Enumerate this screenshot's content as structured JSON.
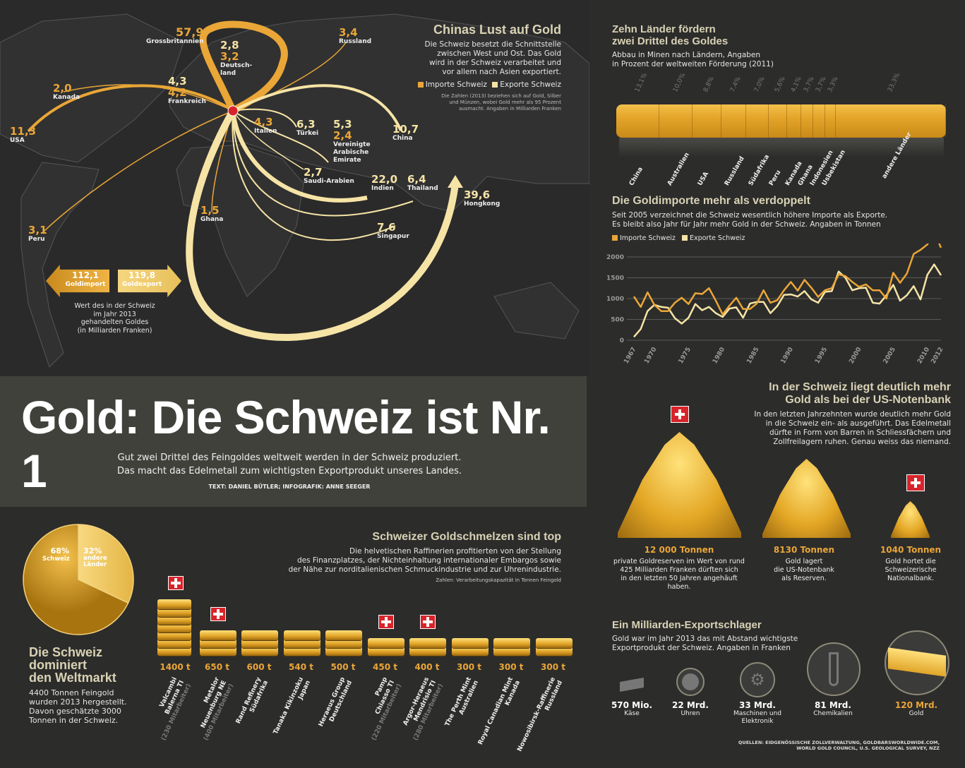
{
  "title": "Gold: Die Schweiz ist Nr. 1",
  "subtitle": [
    "Gut zwei Drittel des Feingoldes weltweit werden in der Schweiz produziert.",
    "Das macht das Edelmetall zum wichtigsten Exportprodukt unseres Landes."
  ],
  "credit": "TEXT: DANIEL BÜTLER; INFOGRAFIK: ANNE SEEGER",
  "colors": {
    "import": "#eaa637",
    "export": "#f6e4a6",
    "background": "#2c2c2b"
  },
  "map": {
    "title": "Chinas Lust auf Gold",
    "text": [
      "Die Schweiz besetzt die Schnittstelle",
      "zwischen West und Ost. Das Gold",
      "wird in der Schweiz verarbeitet und",
      "vor allem nach Asien exportiert."
    ],
    "legend_import": "Importe Schweiz",
    "legend_export": "Exporte Schweiz",
    "note": [
      "Die Zahlen (2013) beziehen sich auf Gold, Silber",
      "und Münzen, wobei Gold mehr als 95 Prozent",
      "ausmacht. Angaben in Milliarden Franken"
    ],
    "countries": {
      "gb": {
        "name": "Grossbritannien",
        "import": "57,9"
      },
      "de": {
        "name1": "Deutsch-",
        "name2": "land",
        "export": "2,8",
        "import": "3,2"
      },
      "ru": {
        "name": "Russland",
        "import": "3,4"
      },
      "ca": {
        "name": "Kanada",
        "import": "2,0"
      },
      "fr": {
        "name": "Frankreich",
        "export": "4,3",
        "import": "4,2"
      },
      "us": {
        "name": "USA",
        "import": "11,3"
      },
      "it": {
        "name": "Italien",
        "import": "4,3"
      },
      "tr": {
        "name": "Türkei",
        "export": "6,3"
      },
      "ae": {
        "name1": "Vereinigte",
        "name2": "Arabische",
        "name3": "Emirate",
        "export": "5,3",
        "import": "2,4"
      },
      "cn": {
        "name": "China",
        "export": "10,7"
      },
      "sa": {
        "name": "Saudi-Arabien",
        "export": "2,7"
      },
      "in": {
        "name": "Indien",
        "export": "22,0"
      },
      "th": {
        "name": "Thailand",
        "export": "6,4"
      },
      "hk": {
        "name": "Hongkong",
        "export": "39,6"
      },
      "gh": {
        "name": "Ghana",
        "import": "1,5"
      },
      "sg": {
        "name": "Singapur",
        "export": "7,6"
      },
      "pe": {
        "name": "Peru",
        "import": "3,1"
      }
    },
    "goldimport": {
      "value": "112,1",
      "label": "Goldimport"
    },
    "goldexport": {
      "value": "119,8",
      "label": "Goldexport"
    },
    "trade_note": [
      "Wert des in der Schweiz",
      "im Jahr 2013",
      "gehandelten Goldes",
      "(in Milliarden Franken)"
    ]
  },
  "mining": {
    "title": [
      "Zehn Länder fördern",
      "zwei Drittel des Goldes"
    ],
    "text": [
      "Abbau in Minen nach Ländern, Angaben",
      "in Prozent der weltweiten Förderung (2011)"
    ]
  },
  "nationalbank": {
    "title": [
      "In der Schweiz liegt deutlich mehr",
      "Gold als bei der US-Notenbank"
    ],
    "text": [
      "In den letzten Jahrzehnten wurde deutlich mehr Gold",
      "in die Schweiz ein- als ausgeführt. Das Edelmetall",
      "dürfte in Form von Barren in Schliessfächern und",
      "Zollfreilagern ruhen. Genau weiss das niemand."
    ],
    "piles": [
      {
        "value": "12 000 Tonnen",
        "desc": [
          "private Goldreserven im Wert von rund",
          "425 Milliarden Franken dürften sich",
          "in den letzten 50 Jahren angehäuft haben."
        ]
      },
      {
        "value": "8130 Tonnen",
        "desc": [
          "Gold lagert",
          "die US-Notenbank",
          "als Reserven."
        ]
      },
      {
        "value": "1040 Tonnen",
        "desc": [
          "Gold hortet die",
          "Schweizerische",
          "Nationalbank."
        ]
      }
    ]
  },
  "smelters": {
    "title": "Schweizer Goldschmelzen sind top",
    "text": [
      "Die helvetischen Raffinerien profitierten von der Stellung",
      "des Finanzplatzes, der Nichteinhaltung internationaler Embargos sowie",
      "der Nähe zur norditalienischen Schmuckindustrie und zur Uhrenindustrie."
    ],
    "note": "Zahlen: Verarbeitungskapazität in Tonnen Feingold"
  },
  "market": {
    "title": [
      "Die Schweiz",
      "dominiert",
      "den Weltmarkt"
    ],
    "text": [
      "4400 Tonnen Feingold",
      "wurden 2013 hergestellt.",
      "Davon geschätzte 3000",
      "Tonnen in der Schweiz."
    ]
  },
  "exports": {
    "title": "Ein Milliarden-Exportschlager",
    "text": [
      "Gold war im Jahr 2013 das mit Abstand wichtigste",
      "Exportprodukt der Schweiz. Angaben in Franken"
    ],
    "items": [
      {
        "value": "570 Mio.",
        "label": "Käse",
        "icon": "cheese-icon"
      },
      {
        "value": "22 Mrd.",
        "label": "Uhren",
        "icon": "clock-icon"
      },
      {
        "value": "33 Mrd.",
        "label": "Maschinen und",
        "label2": "Elektronik",
        "icon": "gears-icon"
      },
      {
        "value": "81 Mrd.",
        "label": "Chemikalien",
        "icon": "test-tube-icon"
      },
      {
        "value": "120 Mrd.",
        "label": "Gold",
        "icon": "gold-bar-icon"
      }
    ]
  },
  "sources": [
    "QUELLEN: EIDGENÖSSISCHE ZOLLVERWALTUNG, GOLDBARSWORLDWIDE.COM,",
    "WORLD GOLD COUNCIL, U.S. GEOLOGICAL SURVEY, NZZ"
  ],
  "chart_data": [
    {
      "type": "bar",
      "id": "mining",
      "title": "Zehn Länder fördern zwei Drittel des Goldes",
      "unit": "%",
      "categories": [
        "China",
        "Australien",
        "USA",
        "Russland",
        "Südafrika",
        "Peru",
        "Kanada",
        "Ghana",
        "Indonesien",
        "Usbekistan",
        "andere Länder"
      ],
      "values": [
        13.1,
        10.0,
        8.8,
        7.4,
        7.0,
        5.6,
        4.1,
        3.7,
        3.7,
        3.3,
        33.3
      ],
      "labels": [
        "13,1%",
        "10,0%",
        "8,8%",
        "7,4%",
        "7,0%",
        "5,6%",
        "4,1%",
        "3,7%",
        "3,7%",
        "3,3%",
        "33,3%"
      ]
    },
    {
      "type": "line",
      "id": "imports",
      "title": "Die Goldimporte mehr als verdoppelt",
      "subtitle": [
        "Seit 2005 verzeichnet die Schweiz wesentlich höhere Importe als Exporte.",
        "Es bleibt also Jahr für Jahr mehr Gold in der Schweiz. Angaben in Tonnen"
      ],
      "xlabel": "",
      "ylabel": "Tonnen",
      "ylim": [
        0,
        2500
      ],
      "yticks": [
        0,
        500,
        1000,
        1500,
        2000
      ],
      "xticks": [
        1967,
        1970,
        1975,
        1980,
        1985,
        1990,
        1995,
        2000,
        2005,
        2010,
        2012
      ],
      "x_start": 1967,
      "series": [
        {
          "name": "Importe Schweiz",
          "color": "#eaa637",
          "values": [
            1050,
            800,
            1150,
            850,
            700,
            700,
            900,
            1020,
            870,
            1130,
            1110,
            1250,
            950,
            620,
            830,
            1020,
            750,
            750,
            880,
            1200,
            900,
            960,
            1200,
            1400,
            1190,
            1450,
            1260,
            1040,
            1200,
            1250,
            1580,
            1540,
            1400,
            1280,
            1340,
            1200,
            1200,
            1000,
            1620,
            1380,
            1600,
            2070,
            2170,
            2300,
            2600,
            2220
          ]
        },
        {
          "name": "Exporte Schweiz",
          "color": "#f6e4a6",
          "values": [
            80,
            270,
            700,
            850,
            800,
            780,
            530,
            400,
            540,
            870,
            720,
            800,
            650,
            560,
            760,
            790,
            540,
            880,
            920,
            920,
            650,
            820,
            1090,
            1100,
            1050,
            1180,
            980,
            900,
            1160,
            1180,
            1650,
            1500,
            1200,
            1250,
            1260,
            900,
            880,
            1080,
            1330,
            950,
            1080,
            1300,
            980,
            1570,
            1820,
            1560
          ]
        }
      ]
    },
    {
      "type": "bar",
      "id": "smelters",
      "title": "Schweizer Goldschmelzen sind top",
      "unit": "t",
      "items": [
        {
          "value": 1400,
          "label": "1400 t",
          "name1": "Valcambi",
          "name2": "Balerna TI",
          "staff": "(230 Mitarbeiter)",
          "swiss": true
        },
        {
          "value": 650,
          "label": "650 t",
          "name1": "Metalor",
          "name2": "Neuenburg NE",
          "staff": "(400 Mitarbeiter)",
          "swiss": true
        },
        {
          "value": 600,
          "label": "600 t",
          "name1": "Rand Refinery",
          "name2": "Südafrika",
          "staff": "",
          "swiss": false
        },
        {
          "value": 540,
          "label": "540 t",
          "name1": "Tanaka Kikinzoku",
          "name2": "Japan",
          "staff": "",
          "swiss": false
        },
        {
          "value": 500,
          "label": "500 t",
          "name1": "Heraeus Group",
          "name2": "Deutschland",
          "staff": "",
          "swiss": false
        },
        {
          "value": 450,
          "label": "450 t",
          "name1": "Pamp",
          "name2": "Chiasso TI",
          "staff": "(220 Mitarbeiter)",
          "swiss": true
        },
        {
          "value": 400,
          "label": "400 t",
          "name1": "Argor-Heraeus",
          "name2": "Mendrisio TI",
          "staff": "(280 Mitarbeiter)",
          "swiss": true
        },
        {
          "value": 300,
          "label": "300 t",
          "name1": "The Perth Mint",
          "name2": "Australien",
          "staff": "",
          "swiss": false
        },
        {
          "value": 300,
          "label": "300 t",
          "name1": "Royal Canadian Mint",
          "name2": "Kanada",
          "staff": "",
          "swiss": false
        },
        {
          "value": 300,
          "label": "300 t",
          "name1": "Nowosibirsk-Raffinerie",
          "name2": "Russland",
          "staff": "",
          "swiss": false
        }
      ]
    },
    {
      "type": "pie",
      "id": "market",
      "slices": [
        {
          "label": "Schweiz",
          "value": 68,
          "text": "68%"
        },
        {
          "label": "andere Länder",
          "label1": "andere",
          "label2": "Länder",
          "value": 32,
          "text": "32%"
        }
      ]
    }
  ]
}
